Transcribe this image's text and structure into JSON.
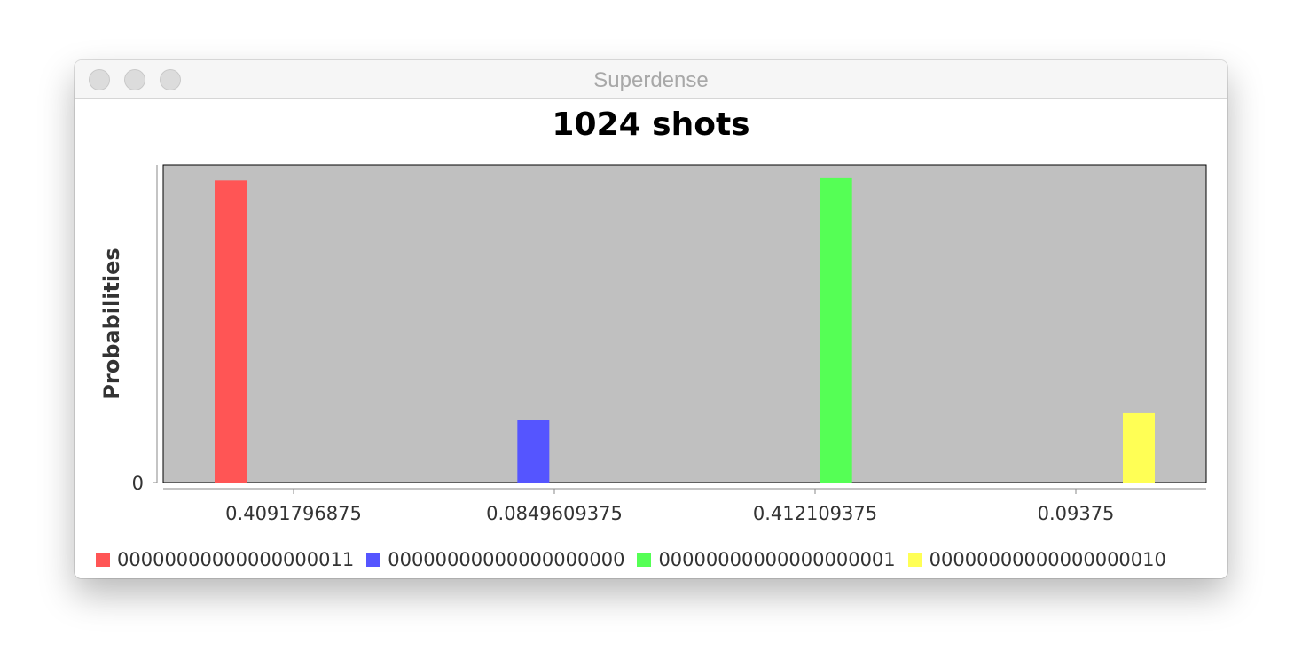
{
  "window": {
    "title": "Superdense"
  },
  "colors": {
    "plot_background": "#c0c0c0",
    "series": [
      "#ff5555",
      "#5555ff",
      "#55ff55",
      "#ffff55"
    ]
  },
  "chart_data": {
    "type": "bar",
    "title": "1024 shots",
    "ylabel": "Probabilities",
    "xlabel": "",
    "y_ticks": [
      "0"
    ],
    "ylim": [
      0,
      0.43
    ],
    "categories": [
      "0.4091796875",
      "0.0849609375",
      "0.412109375",
      "0.09375"
    ],
    "series": [
      {
        "name": "00000000000000000011",
        "values": [
          0.4091796875,
          0,
          0,
          0
        ]
      },
      {
        "name": "00000000000000000000",
        "values": [
          0,
          0.0849609375,
          0,
          0
        ]
      },
      {
        "name": "00000000000000000001",
        "values": [
          0,
          0,
          0.412109375,
          0
        ]
      },
      {
        "name": "00000000000000000010",
        "values": [
          0,
          0,
          0,
          0.09375
        ]
      }
    ],
    "grid": false,
    "legend": "bottom"
  }
}
